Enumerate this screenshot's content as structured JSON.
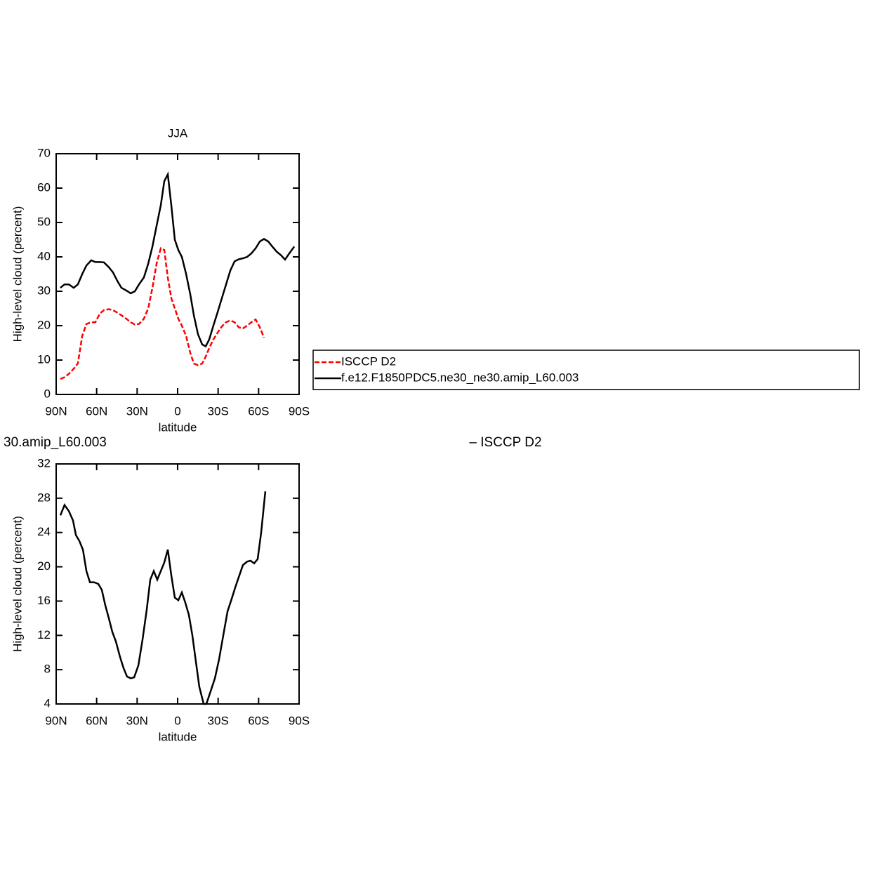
{
  "chart_data": [
    {
      "type": "line",
      "title": "JJA",
      "xlabel": "latitude",
      "ylabel": "High-level cloud (percent)",
      "xlim": [
        90,
        -90
      ],
      "xticks": [
        {
          "value": 90,
          "label": "90N"
        },
        {
          "value": 60,
          "label": "60N"
        },
        {
          "value": 30,
          "label": "30N"
        },
        0,
        {
          "value": -30,
          "label": "30S"
        },
        {
          "value": -60,
          "label": "60S"
        },
        {
          "value": -90,
          "label": "90S"
        }
      ],
      "ylim": [
        0,
        70
      ],
      "yticks": [
        0,
        10,
        20,
        30,
        40,
        50,
        60,
        70
      ],
      "legend": "right",
      "x": [
        86.9,
        83.8,
        80.6,
        77.0,
        73.9,
        70.7,
        67.6,
        64.0,
        60.9,
        57.7,
        54.6,
        51.0,
        47.9,
        44.7,
        41.6,
        38.0,
        34.8,
        31.7,
        28.6,
        25.0,
        21.8,
        18.7,
        15.6,
        12.5,
        9.9,
        7.3,
        4.7,
        2.1,
        -0.5,
        -3.1,
        -6.3,
        -9.4,
        -12.0,
        -15.1,
        -18.2,
        -20.8,
        -23.4,
        -26.5,
        -29.7,
        -32.8,
        -35.9,
        -39.0,
        -42.2,
        -45.3,
        -48.4,
        -51.5,
        -54.6,
        -57.8,
        -60.9,
        -64.0,
        -67.1,
        -70.2,
        -73.4,
        -76.5,
        -79.6,
        -82.7,
        -86.4
      ],
      "series": [
        {
          "name": "ISCCP D2",
          "color": "#ff0000",
          "linestyle": "dashed",
          "values": [
            4.5,
            5,
            6,
            7.5,
            9,
            17,
            20.5,
            21,
            21,
            23.5,
            24.5,
            24.8,
            24.5,
            23.8,
            23,
            22,
            21,
            20.3,
            20.5,
            22,
            25,
            31,
            38,
            42.5,
            42,
            34,
            28,
            25,
            22,
            20,
            17,
            12,
            9,
            8.5,
            9,
            11,
            13.5,
            16,
            18,
            19.8,
            21,
            21.5,
            21,
            19.5,
            19.2,
            20,
            21,
            21.8,
            19.5,
            16.5,
            null,
            null,
            null,
            null,
            null,
            null,
            null
          ]
        },
        {
          "name": "f.e12.F1850PDC5.ne30_ne30.amip_L60.003",
          "color": "#000000",
          "linestyle": "solid",
          "values": [
            31,
            32,
            32,
            31,
            32,
            35,
            37.5,
            39,
            38.5,
            38.5,
            38.4,
            37,
            35.5,
            33,
            31,
            30.2,
            29.4,
            30,
            32,
            34,
            38,
            43,
            49,
            55,
            62,
            64,
            55,
            45,
            42,
            40,
            35,
            29,
            23,
            17.5,
            14.5,
            14,
            16,
            20,
            24,
            28,
            32,
            36,
            38.7,
            39.3,
            39.6,
            40,
            41,
            42.5,
            44.5,
            45.2,
            44.5,
            43,
            41.5,
            40.5,
            39.2,
            41,
            43
          ]
        }
      ]
    },
    {
      "type": "line",
      "title_left": "30.amip_L60.003",
      "title_right": "– ISCCP D2",
      "xlabel": "latitude",
      "ylabel": "High-level cloud (percent)",
      "xlim": [
        90,
        -90
      ],
      "xticks": [
        {
          "value": 90,
          "label": "90N"
        },
        {
          "value": 60,
          "label": "60N"
        },
        {
          "value": 30,
          "label": "30N"
        },
        0,
        {
          "value": -30,
          "label": "30S"
        },
        {
          "value": -60,
          "label": "60S"
        },
        {
          "value": -90,
          "label": "90S"
        }
      ],
      "ylim": [
        4,
        32
      ],
      "yticks": [
        4,
        8,
        12,
        16,
        20,
        24,
        28,
        32
      ],
      "x": [
        86.9,
        83.8,
        80.6,
        77.5,
        75.4,
        72.8,
        70.2,
        67.6,
        65.0,
        61.9,
        58.8,
        56.2,
        53.6,
        51.0,
        48.4,
        45.8,
        42.7,
        40.1,
        37.5,
        34.8,
        32.2,
        29.1,
        26.0,
        22.9,
        20.3,
        17.7,
        15.1,
        12.5,
        9.9,
        7.3,
        4.7,
        2.1,
        -0.5,
        -3.1,
        -5.7,
        -8.3,
        -10.9,
        -13.5,
        -16.1,
        -19.3,
        -21.3,
        -24.5,
        -27.6,
        -30.7,
        -33.8,
        -37.0,
        -40.1,
        -42.7,
        -45.3,
        -48.4,
        -51.5,
        -54.1,
        -56.7,
        -59.3,
        -61.9,
        -65.0
      ],
      "series": [
        {
          "color": "#000000",
          "linestyle": "solid",
          "values": [
            26,
            27.2,
            26.5,
            25.4,
            23.7,
            23,
            22,
            19.5,
            18.2,
            18.2,
            18,
            17.3,
            15.5,
            14,
            12.4,
            11.3,
            9.5,
            8.2,
            7.2,
            7,
            7.1,
            8.5,
            11.5,
            15,
            18.5,
            19.5,
            18.5,
            19.5,
            20.5,
            22,
            19,
            16.4,
            16.1,
            17,
            15.8,
            14.4,
            12,
            9,
            6,
            4,
            4,
            5.5,
            7,
            9.2,
            12,
            14.8,
            16.3,
            17.6,
            18.8,
            20.2,
            20.6,
            20.7,
            20.4,
            20.9,
            24,
            28.8
          ]
        }
      ]
    }
  ]
}
